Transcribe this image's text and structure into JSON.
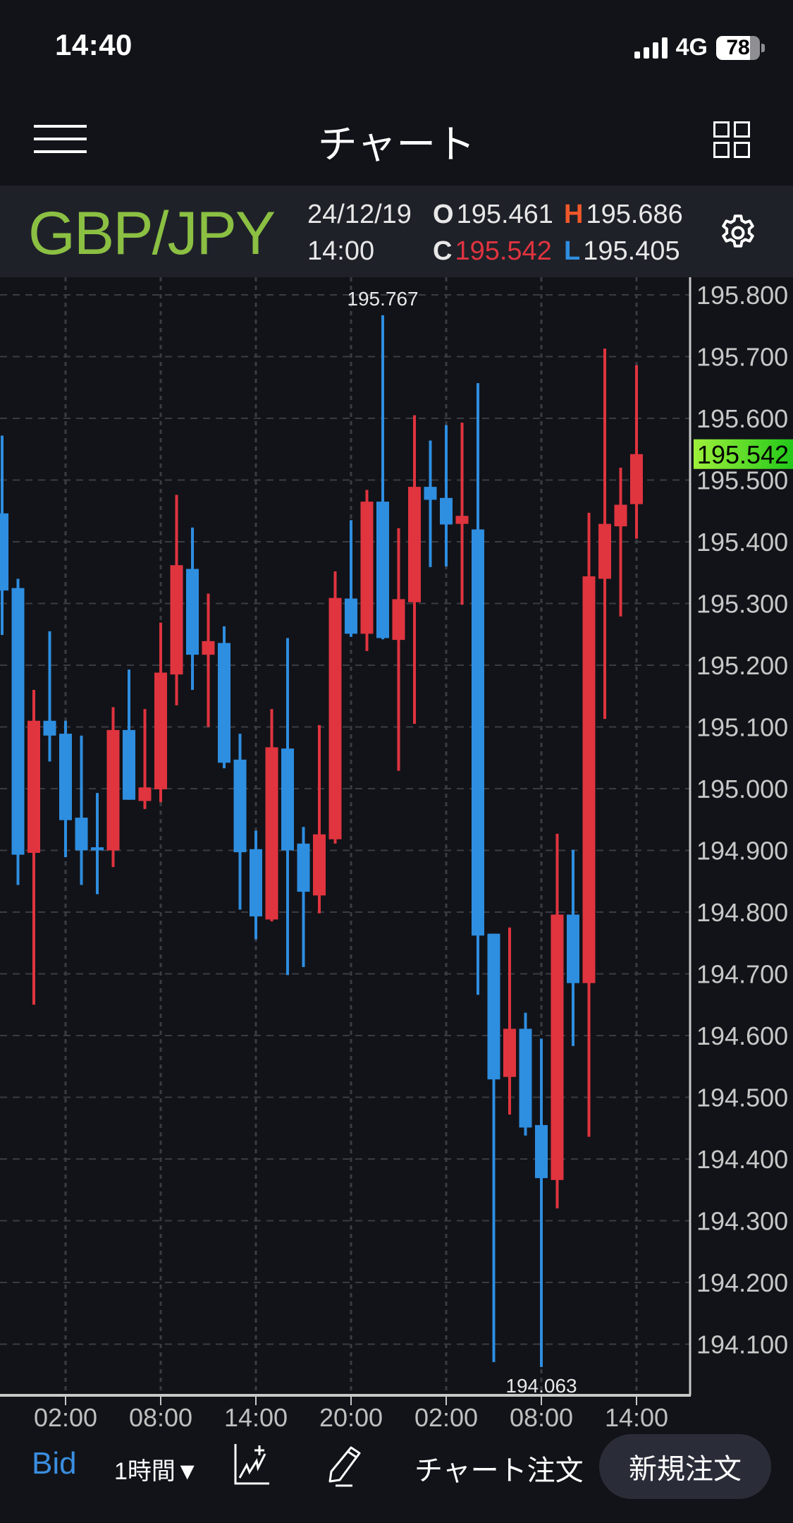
{
  "status_bar": {
    "time": "14:40",
    "network": "4G",
    "battery": "78"
  },
  "nav": {
    "title": "チャート",
    "menu_icon": "hamburger-icon",
    "layout_icon": "grid-icon"
  },
  "info": {
    "symbol": "GBP/JPY",
    "date": "24/12/19",
    "time": "14:00",
    "open_label": "O",
    "open": "195.461",
    "high_label": "H",
    "high": "195.686",
    "close_label": "C",
    "close": "195.542",
    "low_label": "L",
    "low": "195.405",
    "settings_icon": "gear-icon"
  },
  "colors": {
    "up": "#e0343f",
    "down": "#2e8ee0",
    "symbol": "#8bc043",
    "high_label": "#f0582a",
    "low_label": "#2e8ee0",
    "close_value": "#e0343f",
    "current_price_bg": "#6fe020",
    "background": "#121318",
    "infobar": "#1f2129"
  },
  "toolbar": {
    "price_type": "Bid",
    "timeframe": "1時間▼",
    "indicator_icon": "add-indicator-icon",
    "draw_icon": "pencil-icon",
    "chart_order": "チャート注文",
    "new_order": "新規注文"
  },
  "chart_data": {
    "type": "candlestick",
    "title": "GBP/JPY 1時間",
    "xlabel": "",
    "ylabel": "",
    "ylim": [
      194.0,
      195.89
    ],
    "y_ticks": [
      "195.800",
      "195.700",
      "195.600",
      "195.500",
      "195.400",
      "195.300",
      "195.200",
      "195.100",
      "195.000",
      "194.900",
      "194.800",
      "194.700",
      "194.600",
      "194.500",
      "194.400",
      "194.300",
      "194.200",
      "194.100"
    ],
    "x_ticks": [
      "02:00",
      "08:00",
      "14:00",
      "20:00",
      "02:00",
      "08:00",
      "14:00"
    ],
    "x_tick_candle_index": [
      4,
      10,
      16,
      22,
      28,
      34,
      40
    ],
    "current_price": "195.542",
    "max_label": "195.767",
    "min_label": "194.063",
    "grid": true,
    "up_color_means": "close > open (red)",
    "candles": [
      {
        "o": 195.446,
        "h": 195.572,
        "l": 195.249,
        "c": 195.321
      },
      {
        "o": 195.325,
        "h": 195.34,
        "l": 194.844,
        "c": 194.893
      },
      {
        "o": 194.896,
        "h": 195.16,
        "l": 194.65,
        "c": 195.11
      },
      {
        "o": 195.11,
        "h": 195.255,
        "l": 195.044,
        "c": 195.086
      },
      {
        "o": 195.089,
        "h": 195.11,
        "l": 194.889,
        "c": 194.949
      },
      {
        "o": 194.953,
        "h": 195.086,
        "l": 194.844,
        "c": 194.9
      },
      {
        "o": 194.905,
        "h": 194.993,
        "l": 194.829,
        "c": 194.9
      },
      {
        "o": 194.9,
        "h": 195.132,
        "l": 194.873,
        "c": 195.095
      },
      {
        "o": 195.095,
        "h": 195.193,
        "l": 194.982,
        "c": 194.982
      },
      {
        "o": 194.98,
        "h": 195.129,
        "l": 194.967,
        "c": 195.002
      },
      {
        "o": 194.999,
        "h": 195.269,
        "l": 194.978,
        "c": 195.188
      },
      {
        "o": 195.185,
        "h": 195.476,
        "l": 195.135,
        "c": 195.362
      },
      {
        "o": 195.356,
        "h": 195.423,
        "l": 195.16,
        "c": 195.217
      },
      {
        "o": 195.217,
        "h": 195.316,
        "l": 195.1,
        "c": 195.239
      },
      {
        "o": 195.236,
        "h": 195.263,
        "l": 195.033,
        "c": 195.042
      },
      {
        "o": 195.047,
        "h": 195.089,
        "l": 194.804,
        "c": 194.897
      },
      {
        "o": 194.902,
        "h": 194.932,
        "l": 194.756,
        "c": 194.793
      },
      {
        "o": 194.788,
        "h": 195.129,
        "l": 194.785,
        "c": 195.067
      },
      {
        "o": 195.065,
        "h": 195.244,
        "l": 194.698,
        "c": 194.9
      },
      {
        "o": 194.911,
        "h": 194.938,
        "l": 194.711,
        "c": 194.833
      },
      {
        "o": 194.827,
        "h": 195.103,
        "l": 194.798,
        "c": 194.926
      },
      {
        "o": 194.918,
        "h": 195.352,
        "l": 194.911,
        "c": 195.309
      },
      {
        "o": 195.308,
        "h": 195.435,
        "l": 195.246,
        "c": 195.251
      },
      {
        "o": 195.251,
        "h": 195.484,
        "l": 195.223,
        "c": 195.465
      },
      {
        "o": 195.465,
        "h": 195.767,
        "l": 195.242,
        "c": 195.244
      },
      {
        "o": 195.241,
        "h": 195.422,
        "l": 195.029,
        "c": 195.307
      },
      {
        "o": 195.302,
        "h": 195.605,
        "l": 195.105,
        "c": 195.489
      },
      {
        "o": 195.489,
        "h": 195.564,
        "l": 195.359,
        "c": 195.468
      },
      {
        "o": 195.471,
        "h": 195.589,
        "l": 195.36,
        "c": 195.428
      },
      {
        "o": 195.429,
        "h": 195.593,
        "l": 195.298,
        "c": 195.442
      },
      {
        "o": 195.42,
        "h": 195.657,
        "l": 194.666,
        "c": 194.762
      },
      {
        "o": 194.765,
        "h": 194.765,
        "l": 194.071,
        "c": 194.529
      },
      {
        "o": 194.533,
        "h": 194.775,
        "l": 194.472,
        "c": 194.611
      },
      {
        "o": 194.611,
        "h": 194.637,
        "l": 194.438,
        "c": 194.451
      },
      {
        "o": 194.455,
        "h": 194.595,
        "l": 194.063,
        "c": 194.369
      },
      {
        "o": 194.366,
        "h": 194.927,
        "l": 194.32,
        "c": 194.796
      },
      {
        "o": 194.796,
        "h": 194.901,
        "l": 194.583,
        "c": 194.685
      },
      {
        "o": 194.685,
        "h": 195.447,
        "l": 194.436,
        "c": 195.344
      },
      {
        "o": 195.34,
        "h": 195.713,
        "l": 195.113,
        "c": 195.429
      },
      {
        "o": 195.425,
        "h": 195.52,
        "l": 195.279,
        "c": 195.46
      },
      {
        "o": 195.461,
        "h": 195.686,
        "l": 195.405,
        "c": 195.542
      }
    ]
  }
}
